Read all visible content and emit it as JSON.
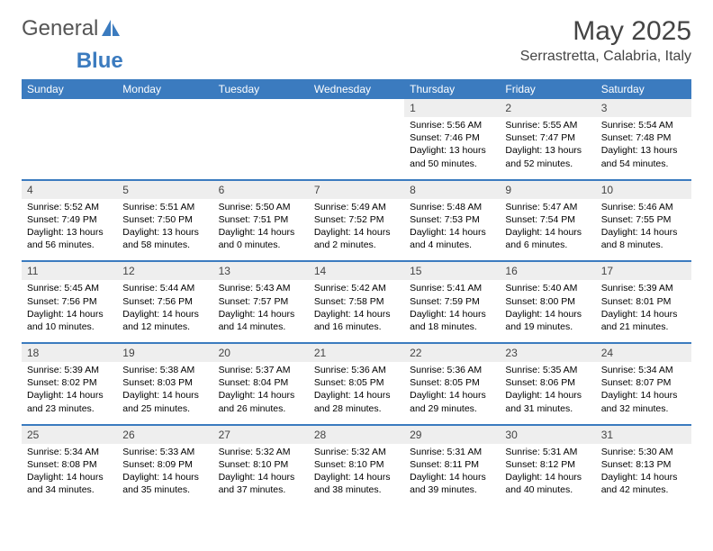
{
  "brand": {
    "part1": "General",
    "part2": "Blue"
  },
  "title": "May 2025",
  "location": "Serrastretta, Calabria, Italy",
  "colors": {
    "header_bg": "#3b7bbf",
    "header_text": "#ffffff",
    "daynum_bg": "#eeeeee",
    "row_border": "#3b7bbf",
    "body_text": "#000000",
    "title_text": "#444444"
  },
  "weekdays": [
    "Sunday",
    "Monday",
    "Tuesday",
    "Wednesday",
    "Thursday",
    "Friday",
    "Saturday"
  ],
  "weeks": [
    [
      null,
      null,
      null,
      null,
      {
        "n": "1",
        "sr": "5:56 AM",
        "ss": "7:46 PM",
        "dl": "13 hours and 50 minutes."
      },
      {
        "n": "2",
        "sr": "5:55 AM",
        "ss": "7:47 PM",
        "dl": "13 hours and 52 minutes."
      },
      {
        "n": "3",
        "sr": "5:54 AM",
        "ss": "7:48 PM",
        "dl": "13 hours and 54 minutes."
      }
    ],
    [
      {
        "n": "4",
        "sr": "5:52 AM",
        "ss": "7:49 PM",
        "dl": "13 hours and 56 minutes."
      },
      {
        "n": "5",
        "sr": "5:51 AM",
        "ss": "7:50 PM",
        "dl": "13 hours and 58 minutes."
      },
      {
        "n": "6",
        "sr": "5:50 AM",
        "ss": "7:51 PM",
        "dl": "14 hours and 0 minutes."
      },
      {
        "n": "7",
        "sr": "5:49 AM",
        "ss": "7:52 PM",
        "dl": "14 hours and 2 minutes."
      },
      {
        "n": "8",
        "sr": "5:48 AM",
        "ss": "7:53 PM",
        "dl": "14 hours and 4 minutes."
      },
      {
        "n": "9",
        "sr": "5:47 AM",
        "ss": "7:54 PM",
        "dl": "14 hours and 6 minutes."
      },
      {
        "n": "10",
        "sr": "5:46 AM",
        "ss": "7:55 PM",
        "dl": "14 hours and 8 minutes."
      }
    ],
    [
      {
        "n": "11",
        "sr": "5:45 AM",
        "ss": "7:56 PM",
        "dl": "14 hours and 10 minutes."
      },
      {
        "n": "12",
        "sr": "5:44 AM",
        "ss": "7:56 PM",
        "dl": "14 hours and 12 minutes."
      },
      {
        "n": "13",
        "sr": "5:43 AM",
        "ss": "7:57 PM",
        "dl": "14 hours and 14 minutes."
      },
      {
        "n": "14",
        "sr": "5:42 AM",
        "ss": "7:58 PM",
        "dl": "14 hours and 16 minutes."
      },
      {
        "n": "15",
        "sr": "5:41 AM",
        "ss": "7:59 PM",
        "dl": "14 hours and 18 minutes."
      },
      {
        "n": "16",
        "sr": "5:40 AM",
        "ss": "8:00 PM",
        "dl": "14 hours and 19 minutes."
      },
      {
        "n": "17",
        "sr": "5:39 AM",
        "ss": "8:01 PM",
        "dl": "14 hours and 21 minutes."
      }
    ],
    [
      {
        "n": "18",
        "sr": "5:39 AM",
        "ss": "8:02 PM",
        "dl": "14 hours and 23 minutes."
      },
      {
        "n": "19",
        "sr": "5:38 AM",
        "ss": "8:03 PM",
        "dl": "14 hours and 25 minutes."
      },
      {
        "n": "20",
        "sr": "5:37 AM",
        "ss": "8:04 PM",
        "dl": "14 hours and 26 minutes."
      },
      {
        "n": "21",
        "sr": "5:36 AM",
        "ss": "8:05 PM",
        "dl": "14 hours and 28 minutes."
      },
      {
        "n": "22",
        "sr": "5:36 AM",
        "ss": "8:05 PM",
        "dl": "14 hours and 29 minutes."
      },
      {
        "n": "23",
        "sr": "5:35 AM",
        "ss": "8:06 PM",
        "dl": "14 hours and 31 minutes."
      },
      {
        "n": "24",
        "sr": "5:34 AM",
        "ss": "8:07 PM",
        "dl": "14 hours and 32 minutes."
      }
    ],
    [
      {
        "n": "25",
        "sr": "5:34 AM",
        "ss": "8:08 PM",
        "dl": "14 hours and 34 minutes."
      },
      {
        "n": "26",
        "sr": "5:33 AM",
        "ss": "8:09 PM",
        "dl": "14 hours and 35 minutes."
      },
      {
        "n": "27",
        "sr": "5:32 AM",
        "ss": "8:10 PM",
        "dl": "14 hours and 37 minutes."
      },
      {
        "n": "28",
        "sr": "5:32 AM",
        "ss": "8:10 PM",
        "dl": "14 hours and 38 minutes."
      },
      {
        "n": "29",
        "sr": "5:31 AM",
        "ss": "8:11 PM",
        "dl": "14 hours and 39 minutes."
      },
      {
        "n": "30",
        "sr": "5:31 AM",
        "ss": "8:12 PM",
        "dl": "14 hours and 40 minutes."
      },
      {
        "n": "31",
        "sr": "5:30 AM",
        "ss": "8:13 PM",
        "dl": "14 hours and 42 minutes."
      }
    ]
  ],
  "labels": {
    "sunrise": "Sunrise:",
    "sunset": "Sunset:",
    "daylight": "Daylight:"
  }
}
